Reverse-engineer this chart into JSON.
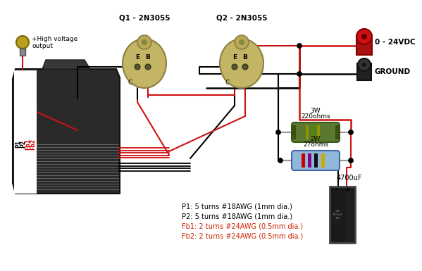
{
  "bg": "#ffffff",
  "q1_label": "Q1 - 2N3055",
  "q2_label": "Q2 - 2N3055",
  "vdc_label": "0 - 24VDC",
  "ground_label": "GROUND",
  "r1_label1": "220ohms",
  "r1_label2": "3W",
  "r2_label1": "27ohms",
  "r2_label2": "2W",
  "cap_label": "4700uF",
  "hv_label1": "+High voltage",
  "hv_label2": "output",
  "coil_labels": [
    "P1",
    "P2",
    "Fb1",
    "Fb2"
  ],
  "coil_colors": [
    "#000000",
    "#000000",
    "#cc0000",
    "#cc0000"
  ],
  "legend": [
    {
      "text": "P1: 5 turns #18AWG (1mm dia.)",
      "color": "#000000"
    },
    {
      "text": "P2: 5 turns #18AWG (1mm dia.)",
      "color": "#000000"
    },
    {
      "text": "Fb1: 2 turns #24AWG (0.5mm dia.)",
      "color": "#cc2200"
    },
    {
      "text": "Fb2: 2 turns #24AWG (0.5mm dia.)",
      "color": "#cc2200"
    }
  ],
  "black": "#000000",
  "red": "#cc1111",
  "transistor_fill": "#c4b565",
  "transistor_edge": "#8a8040",
  "r1_fill": "#5a7830",
  "r2_fill": "#90b8d8",
  "cap_fill": "#1a1a1a",
  "transformer_dark": "#2a2a2a",
  "transformer_mid": "#444444"
}
